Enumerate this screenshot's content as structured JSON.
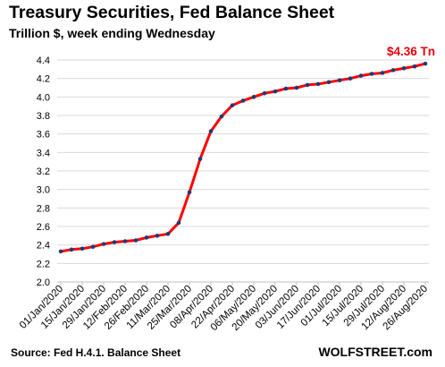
{
  "chart_data": {
    "type": "line",
    "title": "Treasury Securities, Fed Balance Sheet",
    "subtitle": "Trillion $, week ending Wednesday",
    "source": "Source: Fed H.4.1. Balance Sheet",
    "brand": "WOLFSTREET.com",
    "annotation": "$4.36 Tn",
    "ylim": [
      2.0,
      4.4
    ],
    "yticks": [
      "2.0",
      "2.2",
      "2.4",
      "2.6",
      "2.8",
      "3.0",
      "3.2",
      "3.4",
      "3.6",
      "3.8",
      "4.0",
      "4.2",
      "4.4"
    ],
    "x_tick_labels": [
      "01/Jan/2020",
      "15/Jan/2020",
      "29/Jan/2020",
      "12/Feb/2020",
      "26/Feb/2020",
      "11/Mar/2020",
      "25/Mar/2020",
      "08/Apr/2020",
      "22/Apr/2020",
      "06/May/2020",
      "20/May/2020",
      "03/Jun/2020",
      "17/Jun/2020",
      "01/Jul/2020",
      "15/Jul/2020",
      "29/Jul/2020",
      "12/Aug/2020",
      "26/Aug/2020"
    ],
    "x": [
      "01/Jan/2020",
      "08/Jan/2020",
      "15/Jan/2020",
      "22/Jan/2020",
      "29/Jan/2020",
      "05/Feb/2020",
      "12/Feb/2020",
      "19/Feb/2020",
      "26/Feb/2020",
      "04/Mar/2020",
      "11/Mar/2020",
      "18/Mar/2020",
      "25/Mar/2020",
      "01/Apr/2020",
      "08/Apr/2020",
      "15/Apr/2020",
      "22/Apr/2020",
      "29/Apr/2020",
      "06/May/2020",
      "13/May/2020",
      "20/May/2020",
      "27/May/2020",
      "03/Jun/2020",
      "10/Jun/2020",
      "17/Jun/2020",
      "24/Jun/2020",
      "01/Jul/2020",
      "08/Jul/2020",
      "15/Jul/2020",
      "22/Jul/2020",
      "29/Jul/2020",
      "05/Aug/2020",
      "12/Aug/2020",
      "19/Aug/2020",
      "26/Aug/2020"
    ],
    "series": [
      {
        "values": [
          2.33,
          2.35,
          2.36,
          2.38,
          2.41,
          2.43,
          2.44,
          2.45,
          2.48,
          2.5,
          2.52,
          2.64,
          2.97,
          3.33,
          3.63,
          3.79,
          3.91,
          3.96,
          4.0,
          4.04,
          4.06,
          4.09,
          4.1,
          4.13,
          4.14,
          4.16,
          4.18,
          4.2,
          4.23,
          4.25,
          4.26,
          4.29,
          4.31,
          4.33,
          4.36
        ],
        "line_color": "#ff0000",
        "marker_color": "#1f3a7a"
      }
    ],
    "grid": "horizontal"
  }
}
